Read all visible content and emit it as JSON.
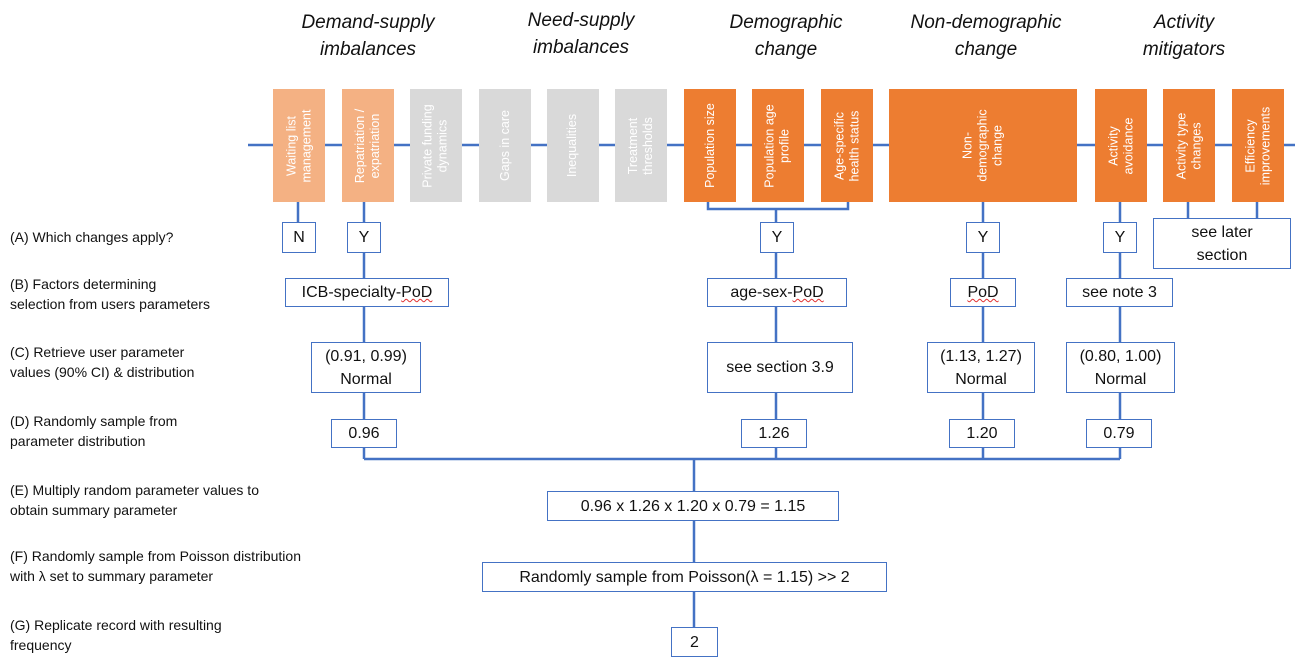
{
  "categories": {
    "demand_supply": [
      "Demand-supply",
      "imbalances"
    ],
    "need_supply": [
      "Need-supply",
      "imbalances"
    ],
    "demographic": [
      "Demographic",
      "change"
    ],
    "non_demographic": [
      "Non-demographic",
      "change"
    ],
    "activity": [
      "Activity",
      "mitigators"
    ]
  },
  "factors": {
    "waiting_list": [
      "Waiting list",
      "management"
    ],
    "repatriation": [
      "Repatriation /",
      "expatriation"
    ],
    "private_funding": [
      "Private funding",
      "dynamics"
    ],
    "gaps_in_care": [
      "Gaps in care"
    ],
    "inequalities": [
      "Inequalities"
    ],
    "treatment_thresholds": [
      "Treatment",
      "thresholds"
    ],
    "population_size": [
      "Population size"
    ],
    "population_age": [
      "Population age",
      "profile"
    ],
    "age_specific": [
      "Age-specific",
      "health status"
    ],
    "non_demographic": [
      "Non-",
      "demographic",
      "change"
    ],
    "activity_avoidance": [
      "Activity",
      "avoidance"
    ],
    "activity_type": [
      "Activity type",
      "changes"
    ],
    "efficiency": [
      "Efficiency",
      "improvements"
    ]
  },
  "steps": {
    "A": [
      "(A) Which changes apply?"
    ],
    "B": [
      "(B) Factors determining",
      "selection from users parameters"
    ],
    "C": [
      "(C) Retrieve user parameter",
      "values (90% CI) & distribution"
    ],
    "D": [
      "(D) Randomly sample from",
      "parameter distribution"
    ],
    "E": [
      "(E) Multiply random parameter values to",
      "obtain summary parameter"
    ],
    "F": [
      "(F) Randomly sample from Poisson distribution",
      "with λ set to summary parameter"
    ],
    "G": [
      "(G) Replicate record with resulting",
      "frequency"
    ]
  },
  "applies": {
    "waiting_list": "N",
    "repatriation": "Y",
    "demographic": "Y",
    "non_demographic": "Y",
    "activity": "Y",
    "later": [
      "see later",
      "section"
    ]
  },
  "selection": {
    "repatriation_pre": "ICB-specialty-",
    "repatriation_pod": "PoD",
    "demographic_pre": "age-sex-",
    "demographic_pod": "PoD",
    "non_demographic": "PoD",
    "activity": "see note 3"
  },
  "params": {
    "repatriation": [
      "(0.91, 0.99)",
      "Normal"
    ],
    "demographic": [
      "see section 3.9"
    ],
    "non_demographic": [
      "(1.13, 1.27)",
      "Normal"
    ],
    "activity": [
      "(0.80, 1.00)",
      "Normal"
    ]
  },
  "samples": {
    "repatriation": "0.96",
    "demographic": "1.26",
    "non_demographic": "1.20",
    "activity": "0.79"
  },
  "summary": "0.96 x  1.26 x 1.20 x 0.79 = 1.15",
  "poisson": "Randomly sample from Poisson(λ = 1.15) >> 2",
  "result": "2",
  "colors": {
    "line": "#4472c4",
    "orange_dark": "#ed7d31",
    "orange_light": "#f4b183",
    "grey": "#d9d9d9"
  }
}
